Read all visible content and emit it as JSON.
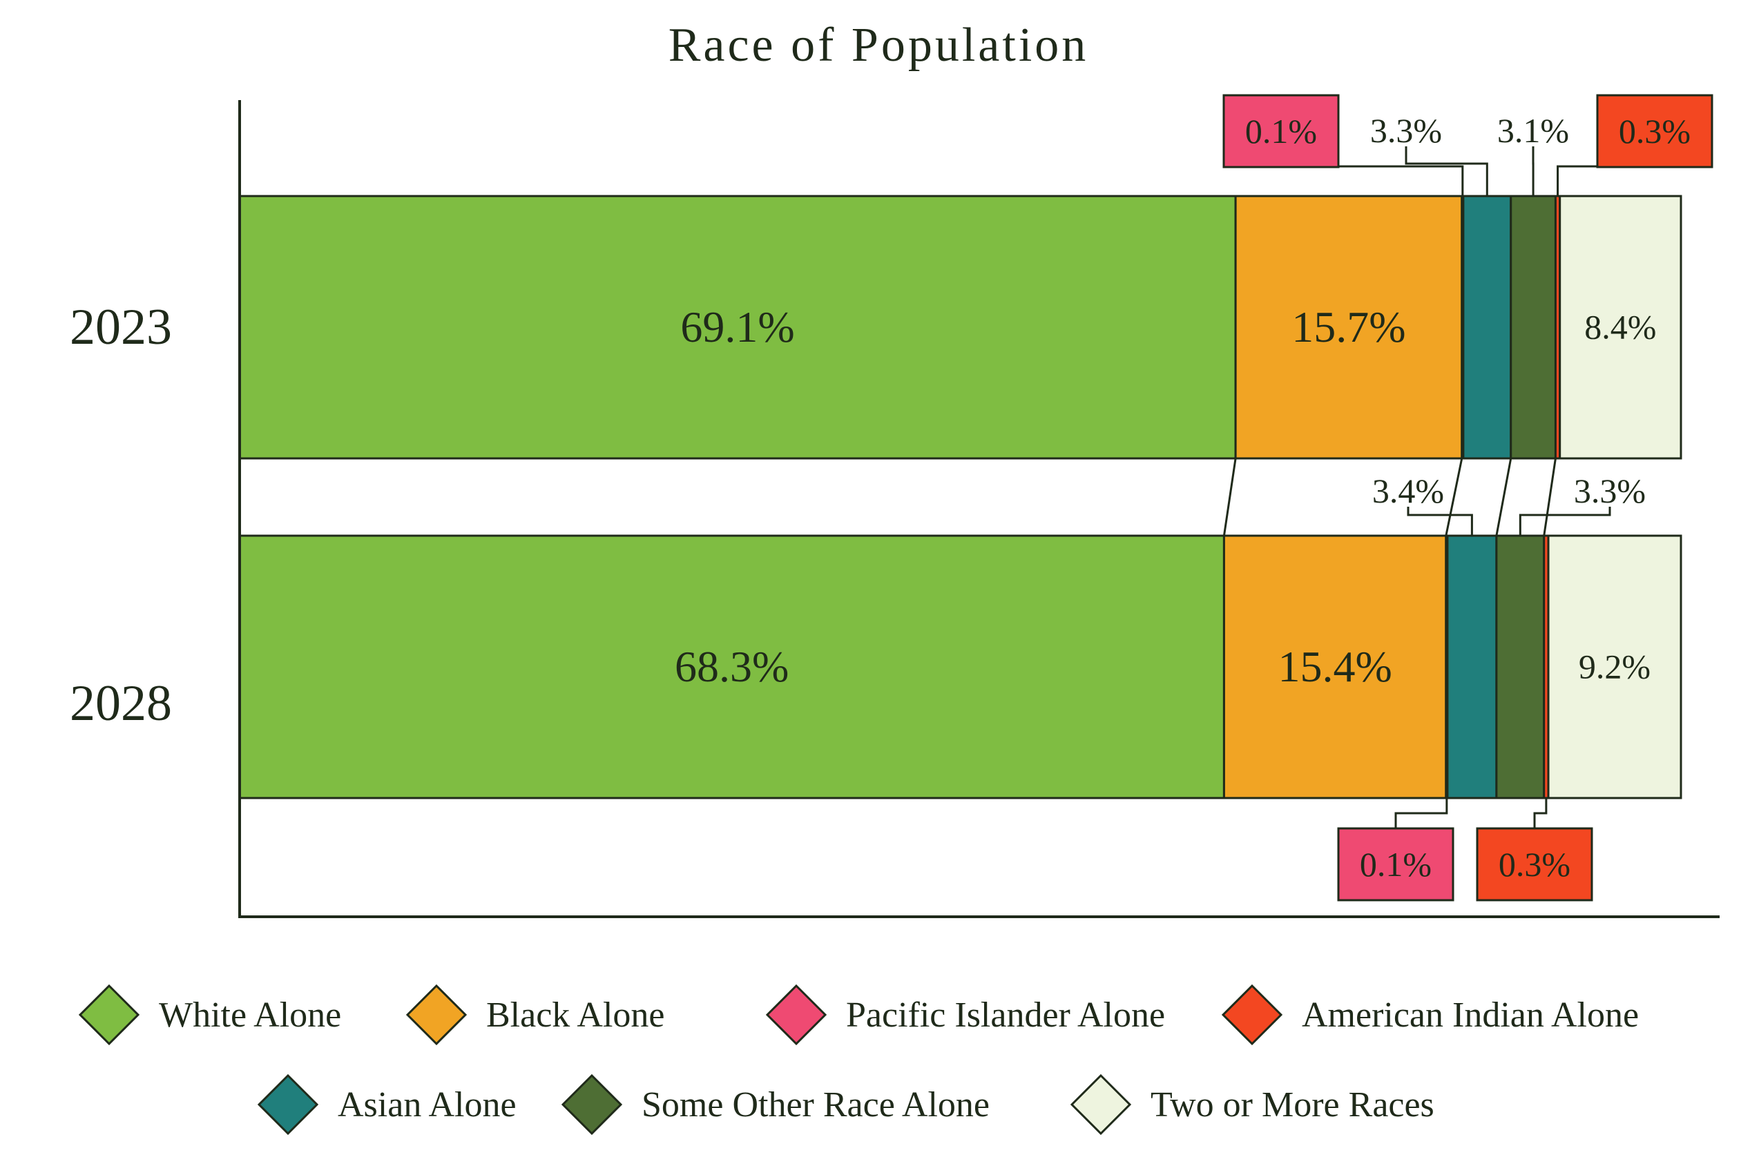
{
  "chart_data": {
    "type": "bar",
    "orientation": "horizontal",
    "stacked": true,
    "title": "Race of Population",
    "xlabel": "",
    "ylabel": "",
    "categories": [
      "2023",
      "2028"
    ],
    "unit": "%",
    "grid": false,
    "legend_placement": "bottom",
    "series": [
      {
        "name": "White Alone",
        "color": "#7fbd42",
        "values": [
          69.1,
          68.3
        ],
        "labels": [
          "69.1%",
          "68.3%"
        ]
      },
      {
        "name": "Black Alone",
        "color": "#f1a424",
        "values": [
          15.7,
          15.4
        ],
        "labels": [
          "15.7%",
          "15.4%"
        ]
      },
      {
        "name": "Pacific Islander Alone",
        "color": "#ef4a72",
        "values": [
          0.1,
          0.1
        ],
        "labels": [
          "0.1%",
          "0.1%"
        ]
      },
      {
        "name": "Asian Alone",
        "color": "#207f7c",
        "values": [
          3.3,
          3.4
        ],
        "labels": [
          "3.3%",
          "3.4%"
        ]
      },
      {
        "name": "Some Other Race Alone",
        "color": "#4e6e34",
        "values": [
          3.1,
          3.3
        ],
        "labels": [
          "3.1%",
          "3.3%"
        ]
      },
      {
        "name": "American Indian Alone",
        "color": "#f34721",
        "values": [
          0.3,
          0.3
        ],
        "labels": [
          "0.3%",
          "0.3%"
        ]
      },
      {
        "name": "Two or More Races",
        "color": "#eef4df",
        "values": [
          8.4,
          9.2
        ],
        "labels": [
          "8.4%",
          "9.2%"
        ]
      }
    ],
    "legend_rows": [
      [
        "White Alone",
        "Black Alone",
        "Pacific Islander Alone",
        "American Indian Alone"
      ],
      [
        "Asian Alone",
        "Some Other Race Alone",
        "Two or More Races"
      ]
    ],
    "colors": {
      "axis": "#1f2a1a",
      "text": "#1f2a1a"
    }
  }
}
